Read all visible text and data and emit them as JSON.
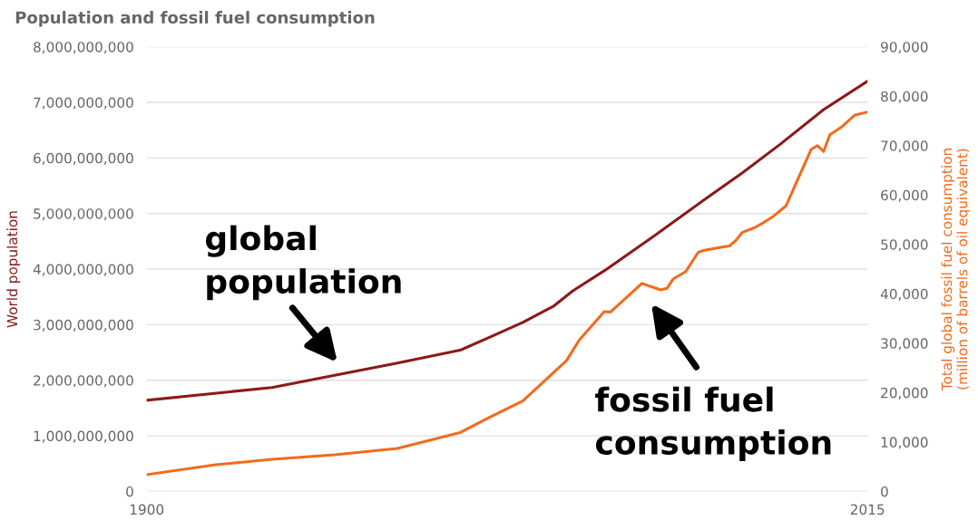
{
  "chart_data": {
    "type": "line",
    "title": "Population and fossil fuel consumption",
    "ylabel": "World population",
    "y2label": "Total global fossil fuel consumption\n(million of barrels of oil equivalent)",
    "xlim": [
      1900,
      2015
    ],
    "xticks": [
      1900,
      2015
    ],
    "ylim": [
      0,
      8000000000
    ],
    "yticks": [
      {
        "value": 0,
        "label": "0"
      },
      {
        "value": 1000000000,
        "label": "1,000,000,000"
      },
      {
        "value": 2000000000,
        "label": "2,000,000,000"
      },
      {
        "value": 3000000000,
        "label": "3,000,000,000"
      },
      {
        "value": 4000000000,
        "label": "4,000,000,000"
      },
      {
        "value": 5000000000,
        "label": "5,000,000,000"
      },
      {
        "value": 6000000000,
        "label": "6,000,000,000"
      },
      {
        "value": 7000000000,
        "label": "7,000,000,000"
      },
      {
        "value": 8000000000,
        "label": "8,000,000,000"
      }
    ],
    "y2lim": [
      0,
      90000
    ],
    "y2ticks": [
      {
        "value": 0,
        "label": "0"
      },
      {
        "value": 10000,
        "label": "10,000"
      },
      {
        "value": 20000,
        "label": "20,000"
      },
      {
        "value": 30000,
        "label": "30,000"
      },
      {
        "value": 40000,
        "label": "40,000"
      },
      {
        "value": 50000,
        "label": "50,000"
      },
      {
        "value": 60000,
        "label": "60,000"
      },
      {
        "value": 70000,
        "label": "70,000"
      },
      {
        "value": 80000,
        "label": "80,000"
      },
      {
        "value": 90000,
        "label": "90,000"
      }
    ],
    "grid": "y",
    "legend": false,
    "marker": "none",
    "line_style": "solid",
    "series": [
      {
        "color": "#8b1a1a",
        "x": [
          1900,
          1920,
          1930,
          1940,
          1950,
          1955,
          1960,
          1965,
          1968,
          1973,
          1981,
          1989,
          1995,
          2001,
          2008,
          2015
        ],
        "values": [
          1640000000,
          1870000000,
          2090000000,
          2310000000,
          2540000000,
          2790000000,
          3040000000,
          3340000000,
          3610000000,
          3970000000,
          4600000000,
          5250000000,
          5730000000,
          6240000000,
          6870000000,
          7380000000
        ]
      },
      {
        "color": "#f26b1d",
        "axis": "y2",
        "x": [
          1900,
          1911,
          1920,
          1930,
          1940,
          1950,
          1955,
          1960,
          1967,
          1969,
          1973,
          1974,
          1976,
          1979,
          1982,
          1983,
          1984,
          1986,
          1988,
          1989,
          1992,
          1993,
          1994,
          1995,
          1997,
          1998,
          2000,
          2002,
          2004,
          2006,
          2007,
          2008,
          2009,
          2011,
          2013,
          2015
        ],
        "values": [
          3400,
          5400,
          6500,
          7400,
          8700,
          11900,
          15200,
          18300,
          26500,
          30600,
          36400,
          36300,
          38600,
          42100,
          40800,
          41100,
          43000,
          44500,
          48400,
          48800,
          49500,
          49700,
          50800,
          52400,
          53400,
          54100,
          55700,
          57800,
          63500,
          69200,
          70000,
          68800,
          72200,
          73900,
          76200,
          76800
        ]
      }
    ],
    "annotations": [
      "global\npopulation",
      "fossil fuel\nconsumption"
    ]
  }
}
